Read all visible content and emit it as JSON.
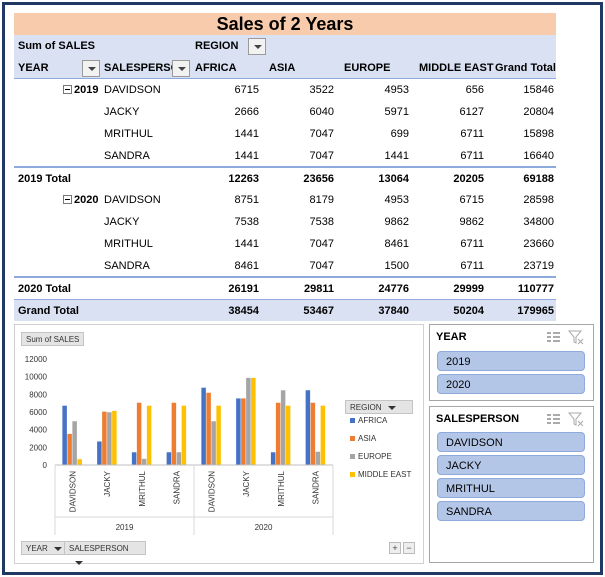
{
  "title": "Sales of 2 Years",
  "pivot": {
    "value_field": "Sum of SALES",
    "column_field": "REGION",
    "row_header_year": "YEAR",
    "row_header_person": "SALESPERSON",
    "columns": [
      "AFRICA",
      "ASIA",
      "EUROPE",
      "MIDDLE EAST",
      "Grand Total"
    ],
    "groups": [
      {
        "year": "2019",
        "rows": [
          {
            "name": "DAVIDSON",
            "values": [
              "6715",
              "3522",
              "4953",
              "656",
              "15846"
            ]
          },
          {
            "name": "JACKY",
            "values": [
              "2666",
              "6040",
              "5971",
              "6127",
              "20804"
            ]
          },
          {
            "name": "MRITHUL",
            "values": [
              "1441",
              "7047",
              "699",
              "6711",
              "15898"
            ]
          },
          {
            "name": "SANDRA",
            "values": [
              "1441",
              "7047",
              "1441",
              "6711",
              "16640"
            ]
          }
        ],
        "total_label": "2019 Total",
        "total": [
          "12263",
          "23656",
          "13064",
          "20205",
          "69188"
        ]
      },
      {
        "year": "2020",
        "rows": [
          {
            "name": "DAVIDSON",
            "values": [
              "8751",
              "8179",
              "4953",
              "6715",
              "28598"
            ]
          },
          {
            "name": "JACKY",
            "values": [
              "7538",
              "7538",
              "9862",
              "9862",
              "34800"
            ]
          },
          {
            "name": "MRITHUL",
            "values": [
              "1441",
              "7047",
              "8461",
              "6711",
              "23660"
            ]
          },
          {
            "name": "SANDRA",
            "values": [
              "8461",
              "7047",
              "1500",
              "6711",
              "23719"
            ]
          }
        ],
        "total_label": "2020 Total",
        "total": [
          "26191",
          "29811",
          "24776",
          "29999",
          "110777"
        ]
      }
    ],
    "grand_label": "Grand Total",
    "grand_total": [
      "38454",
      "53467",
      "37840",
      "50204",
      "179965"
    ]
  },
  "chart_data": {
    "type": "bar",
    "title": "",
    "value_button": "Sum of SALES",
    "legend_title": "REGION",
    "legend_position": "right",
    "axis_buttons": [
      "YEAR",
      "SALESPERSON"
    ],
    "groups": [
      "2019",
      "2020"
    ],
    "categories": [
      "DAVIDSON",
      "JACKY",
      "MRITHUL",
      "SANDRA",
      "DAVIDSON",
      "JACKY",
      "MRITHUL",
      "SANDRA"
    ],
    "ylim": [
      0,
      12000
    ],
    "yticks": [
      "0",
      "2000",
      "4000",
      "6000",
      "8000",
      "10000",
      "12000"
    ],
    "grid": false,
    "series": [
      {
        "name": "AFRICA",
        "color": "#4472c4",
        "values": [
          6715,
          2666,
          1441,
          1441,
          8751,
          7538,
          1441,
          8461
        ]
      },
      {
        "name": "ASIA",
        "color": "#ed7d31",
        "values": [
          3522,
          6040,
          7047,
          7047,
          8179,
          7538,
          7047,
          7047
        ]
      },
      {
        "name": "EUROPE",
        "color": "#a5a5a5",
        "values": [
          4953,
          5971,
          699,
          1441,
          4953,
          9862,
          8461,
          1500
        ]
      },
      {
        "name": "MIDDLE EAST",
        "color": "#ffc000",
        "values": [
          656,
          6127,
          6711,
          6711,
          6715,
          9862,
          6711,
          6711
        ]
      }
    ]
  },
  "slicers": {
    "year": {
      "title": "YEAR",
      "items": [
        "2019",
        "2020"
      ]
    },
    "salesperson": {
      "title": "SALESPERSON",
      "items": [
        "DAVIDSON",
        "JACKY",
        "MRITHUL",
        "SANDRA"
      ]
    }
  },
  "chart_controls": {
    "plus": "+",
    "minus": "−"
  }
}
